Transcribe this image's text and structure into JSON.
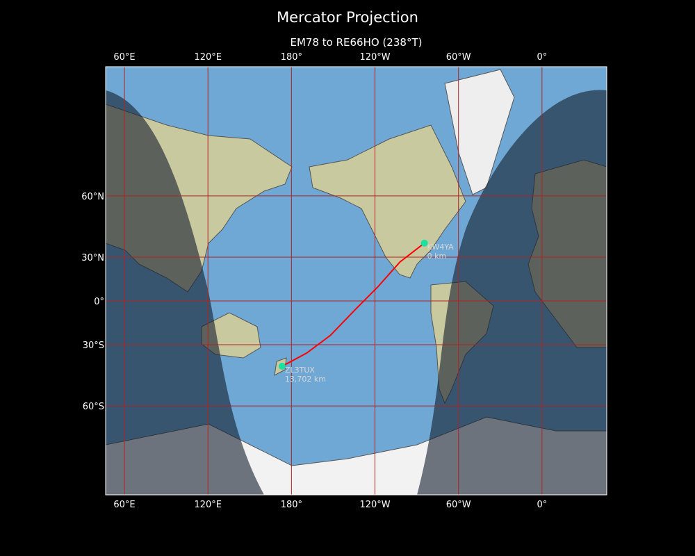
{
  "title": "Mercator Projection",
  "subtitle": "EM78 to RE66HO (238°T)",
  "lon_ticks": [
    {
      "lon": 60,
      "label": "60°E"
    },
    {
      "lon": 120,
      "label": "120°E"
    },
    {
      "lon": 180,
      "label": "180°"
    },
    {
      "lon": -120,
      "label": "120°W"
    },
    {
      "lon": -60,
      "label": "60°W"
    },
    {
      "lon": 0,
      "label": "0°"
    }
  ],
  "lat_ticks": [
    {
      "lat": 60,
      "label": "60°N"
    },
    {
      "lat": 30,
      "label": "30°N"
    },
    {
      "lat": 0,
      "label": "0°"
    },
    {
      "lat": -30,
      "label": "30°S"
    },
    {
      "lat": -60,
      "label": "60°S"
    }
  ],
  "map": {
    "central_lon": -133.5,
    "lat_range": [
      -80,
      84
    ],
    "ocean_color": "#6fa8d4",
    "grid_color": "#b22222",
    "night_shading": true
  },
  "stations": [
    {
      "call": "KW4YA",
      "distance": "0 km",
      "lat": 38.3,
      "lon": -84.5,
      "color": "#1de0a0"
    },
    {
      "call": "ZL3TUX",
      "distance": "13,702 km",
      "lat": -42.4,
      "lon": 173.3,
      "color": "#1de0a0"
    }
  ],
  "path": {
    "color": "#ff0000",
    "points": [
      [
        38.3,
        -84.5
      ],
      [
        27,
        -102
      ],
      [
        10,
        -118
      ],
      [
        -5,
        -133
      ],
      [
        -24,
        -152
      ],
      [
        -35,
        -169
      ],
      [
        -42.4,
        173.3
      ]
    ]
  }
}
